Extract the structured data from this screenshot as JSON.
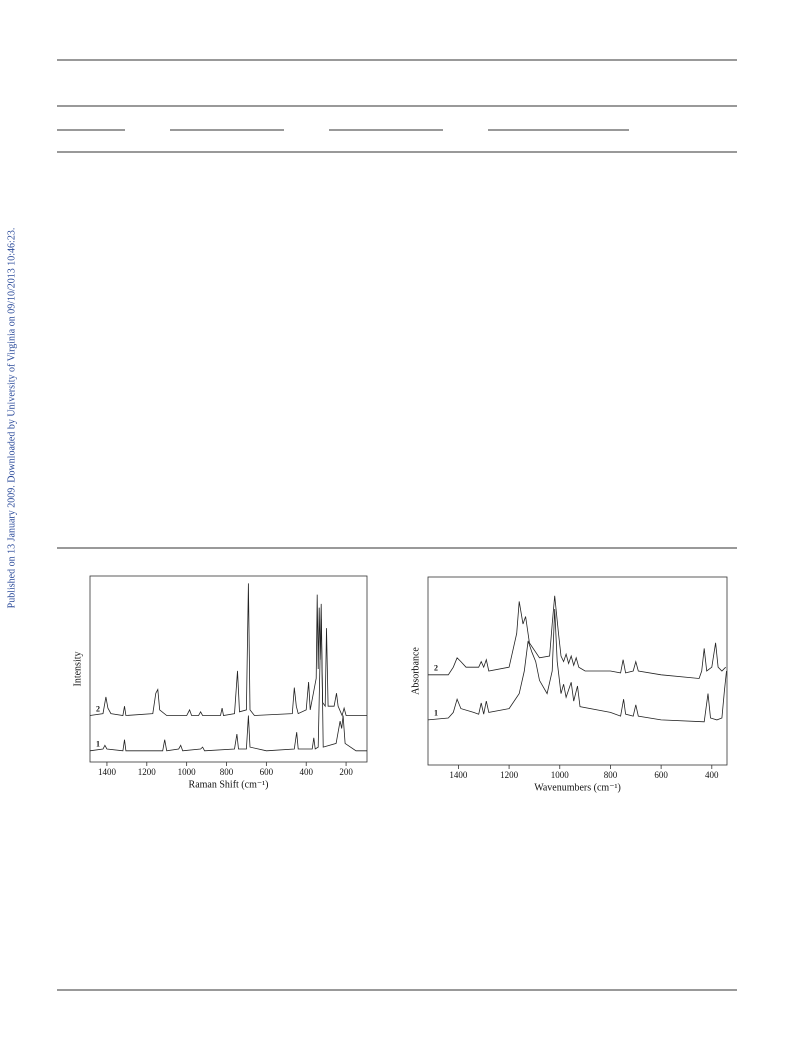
{
  "side_note": "Published on 13 January 2009. Downloaded by University of Virginia on 09/10/2013 10:46:23.",
  "chart_data": [
    {
      "type": "line",
      "xlabel": "Raman Shift (cm⁻¹)",
      "ylabel": "Intensity",
      "xlim": [
        1485,
        95
      ],
      "ylim": [
        0,
        100
      ],
      "xticks": [
        1400,
        1200,
        1000,
        800,
        600,
        400,
        200
      ],
      "series": [
        {
          "name": "1",
          "color": "#222222",
          "x": [
            1485,
            1420,
            1410,
            1400,
            1320,
            1312,
            1305,
            1120,
            1110,
            1100,
            1040,
            1030,
            1020,
            930,
            920,
            910,
            760,
            748,
            740,
            700,
            690,
            682,
            600,
            460,
            448,
            440,
            370,
            362,
            355,
            340,
            325,
            315,
            250,
            230,
            222,
            215,
            205,
            150,
            95
          ],
          "values": [
            6,
            7,
            9,
            7,
            6,
            12,
            6,
            6,
            12,
            6,
            7,
            9,
            6,
            7,
            8,
            6,
            7,
            15,
            7,
            7,
            25,
            8,
            6,
            7,
            16,
            7,
            7,
            13,
            7,
            8,
            85,
            8,
            10,
            22,
            18,
            25,
            10,
            6,
            6
          ]
        },
        {
          "name": "2",
          "color": "#222222",
          "x": [
            1485,
            1420,
            1405,
            1395,
            1380,
            1320,
            1312,
            1305,
            1170,
            1155,
            1145,
            1135,
            1100,
            1000,
            985,
            975,
            940,
            930,
            920,
            830,
            822,
            815,
            760,
            745,
            735,
            700,
            690,
            682,
            660,
            470,
            460,
            450,
            440,
            400,
            388,
            380,
            350,
            345,
            340,
            335,
            330,
            325,
            318,
            305,
            298,
            290,
            260,
            248,
            240,
            220,
            210,
            200,
            150,
            95
          ],
          "values": [
            25,
            26,
            35,
            29,
            26,
            25,
            30,
            25,
            26,
            37,
            39,
            28,
            25,
            25,
            28,
            25,
            25,
            27,
            25,
            25,
            29,
            25,
            26,
            49,
            27,
            28,
            96,
            28,
            25,
            26,
            40,
            30,
            26,
            28,
            43,
            28,
            45,
            90,
            50,
            83,
            55,
            77,
            32,
            30,
            72,
            30,
            30,
            37,
            30,
            25,
            29,
            25,
            25,
            25
          ]
        }
      ]
    },
    {
      "type": "line",
      "xlabel": "Wavenumbers (cm⁻¹)",
      "ylabel": "Absorbance",
      "xlim": [
        1520,
        340
      ],
      "ylim": [
        0,
        100
      ],
      "xticks": [
        1400,
        1200,
        1000,
        800,
        600,
        400
      ],
      "series": [
        {
          "name": "1",
          "color": "#222222",
          "x": [
            1520,
            1440,
            1420,
            1405,
            1390,
            1340,
            1320,
            1310,
            1300,
            1290,
            1280,
            1200,
            1160,
            1140,
            1125,
            1110,
            1095,
            1080,
            1050,
            1030,
            1020,
            1010,
            995,
            985,
            975,
            955,
            945,
            930,
            920,
            800,
            760,
            748,
            740,
            710,
            700,
            690,
            600,
            430,
            415,
            405,
            380,
            360,
            350,
            342
          ],
          "values": [
            24,
            25,
            28,
            35,
            30,
            28,
            27,
            33,
            27,
            34,
            28,
            30,
            38,
            50,
            66,
            60,
            55,
            45,
            38,
            50,
            83,
            55,
            38,
            43,
            36,
            44,
            34,
            42,
            31,
            28,
            26,
            35,
            27,
            26,
            32,
            26,
            24,
            23,
            38,
            25,
            24,
            25,
            40,
            50
          ]
        },
        {
          "name": "2",
          "color": "#222222",
          "x": [
            1520,
            1440,
            1420,
            1405,
            1390,
            1370,
            1320,
            1310,
            1300,
            1290,
            1280,
            1200,
            1170,
            1160,
            1145,
            1135,
            1120,
            1080,
            1040,
            1030,
            1020,
            1005,
            995,
            985,
            975,
            965,
            955,
            945,
            935,
            925,
            900,
            800,
            760,
            750,
            740,
            710,
            700,
            690,
            600,
            450,
            440,
            430,
            420,
            400,
            385,
            375,
            360,
            345
          ],
          "values": [
            48,
            48,
            52,
            57,
            55,
            52,
            52,
            55,
            52,
            56,
            50,
            52,
            70,
            87,
            75,
            79,
            65,
            57,
            58,
            75,
            90,
            70,
            58,
            55,
            59,
            54,
            58,
            53,
            57,
            52,
            50,
            50,
            49,
            56,
            49,
            50,
            55,
            50,
            48,
            46,
            50,
            62,
            50,
            52,
            65,
            52,
            50,
            52
          ]
        }
      ]
    }
  ]
}
